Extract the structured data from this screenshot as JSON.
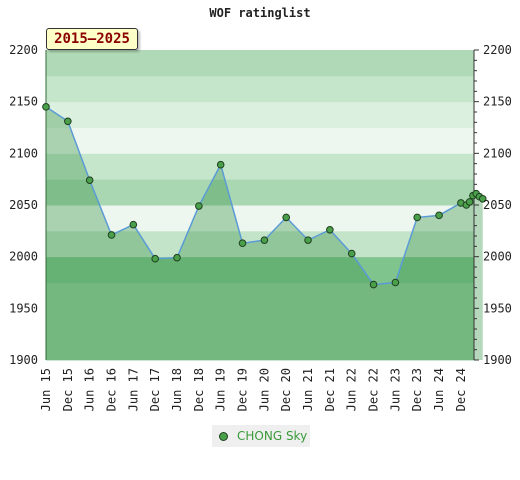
{
  "chart_data": {
    "type": "line",
    "title": "WOF ratinglist",
    "range_label": "2015–2025",
    "ylim": [
      1900,
      2200
    ],
    "y_ticks": [
      1900,
      1950,
      2000,
      2050,
      2100,
      2150,
      2200
    ],
    "x_ticks": [
      "Jun 15",
      "Dec 15",
      "Jun 16",
      "Dec 16",
      "Jun 17",
      "Dec 17",
      "Jun 18",
      "Dec 18",
      "Jun 19",
      "Dec 19",
      "Jun 20",
      "Dec 20",
      "Jun 21",
      "Dec 21",
      "Jun 22",
      "Dec 22",
      "Jun 23",
      "Dec 23",
      "Jun 24",
      "Dec 24"
    ],
    "series": [
      {
        "name": "CHONG Sky",
        "points": [
          {
            "x": 0,
            "y": 2145
          },
          {
            "x": 1,
            "y": 2131
          },
          {
            "x": 2,
            "y": 2074
          },
          {
            "x": 3,
            "y": 2021
          },
          {
            "x": 4,
            "y": 2031
          },
          {
            "x": 5,
            "y": 1998
          },
          {
            "x": 6,
            "y": 1999
          },
          {
            "x": 7,
            "y": 2049
          },
          {
            "x": 8,
            "y": 2089
          },
          {
            "x": 9,
            "y": 2013
          },
          {
            "x": 10,
            "y": 2016
          },
          {
            "x": 11,
            "y": 2038
          },
          {
            "x": 12,
            "y": 2016
          },
          {
            "x": 13,
            "y": 2026
          },
          {
            "x": 14,
            "y": 2003
          },
          {
            "x": 15,
            "y": 1973
          },
          {
            "x": 16,
            "y": 1975
          },
          {
            "x": 17,
            "y": 2038
          },
          {
            "x": 18,
            "y": 2040
          },
          {
            "x": 19,
            "y": 2052
          },
          {
            "x": 19.25,
            "y": 2050
          },
          {
            "x": 19.4,
            "y": 2053
          },
          {
            "x": 19.55,
            "y": 2059
          },
          {
            "x": 19.7,
            "y": 2061
          },
          {
            "x": 19.85,
            "y": 2058
          },
          {
            "x": 20,
            "y": 2056
          }
        ]
      }
    ],
    "colors": {
      "line": "#5b9bd5",
      "marker": "#4aa04a",
      "bands": [
        "#96cea0",
        "#96cea0",
        "#96cea0",
        "#7fc38d",
        "#c3e4c8",
        "#eef7ef",
        "#a9d7b1",
        "#c6e6cb",
        "#eef7ef",
        "#dcf0df",
        "#c6e6cb",
        "#b0dab7"
      ]
    }
  }
}
